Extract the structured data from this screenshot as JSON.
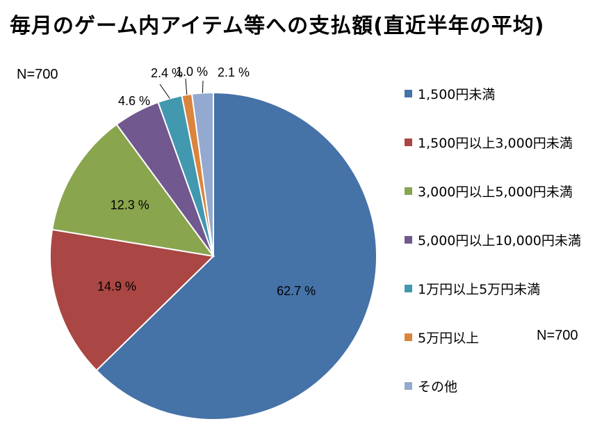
{
  "title": "毎月のゲーム内アイテム等への支払額(直近半年の平均)",
  "sample_label_left": "N=700",
  "sample_label_right": "N=700",
  "chart_data": {
    "type": "pie",
    "unit": "%",
    "slices": [
      {
        "label": "1,500円未満",
        "value": 62.7,
        "value_label": "62.7 %",
        "color": "#4572A7"
      },
      {
        "label": "1,500円以上3,000円未満",
        "value": 14.9,
        "value_label": "14.9 %",
        "color": "#AA4643"
      },
      {
        "label": "3,000円以上5,000円未満",
        "value": 12.3,
        "value_label": "12.3 %",
        "color": "#89A54E"
      },
      {
        "label": "5,000円以上10,000円未満",
        "value": 4.6,
        "value_label": "4.6 %",
        "color": "#71588F"
      },
      {
        "label": "1万円以上5万円未満",
        "value": 2.4,
        "value_label": "2.4 %",
        "color": "#4198AF"
      },
      {
        "label": "5万円以上",
        "value": 1.0,
        "value_label": "1.0 %",
        "color": "#DB843D"
      },
      {
        "label": "その他",
        "value": 2.1,
        "value_label": "2.1 %",
        "color": "#93A9CF"
      }
    ],
    "legend_position": "right"
  }
}
